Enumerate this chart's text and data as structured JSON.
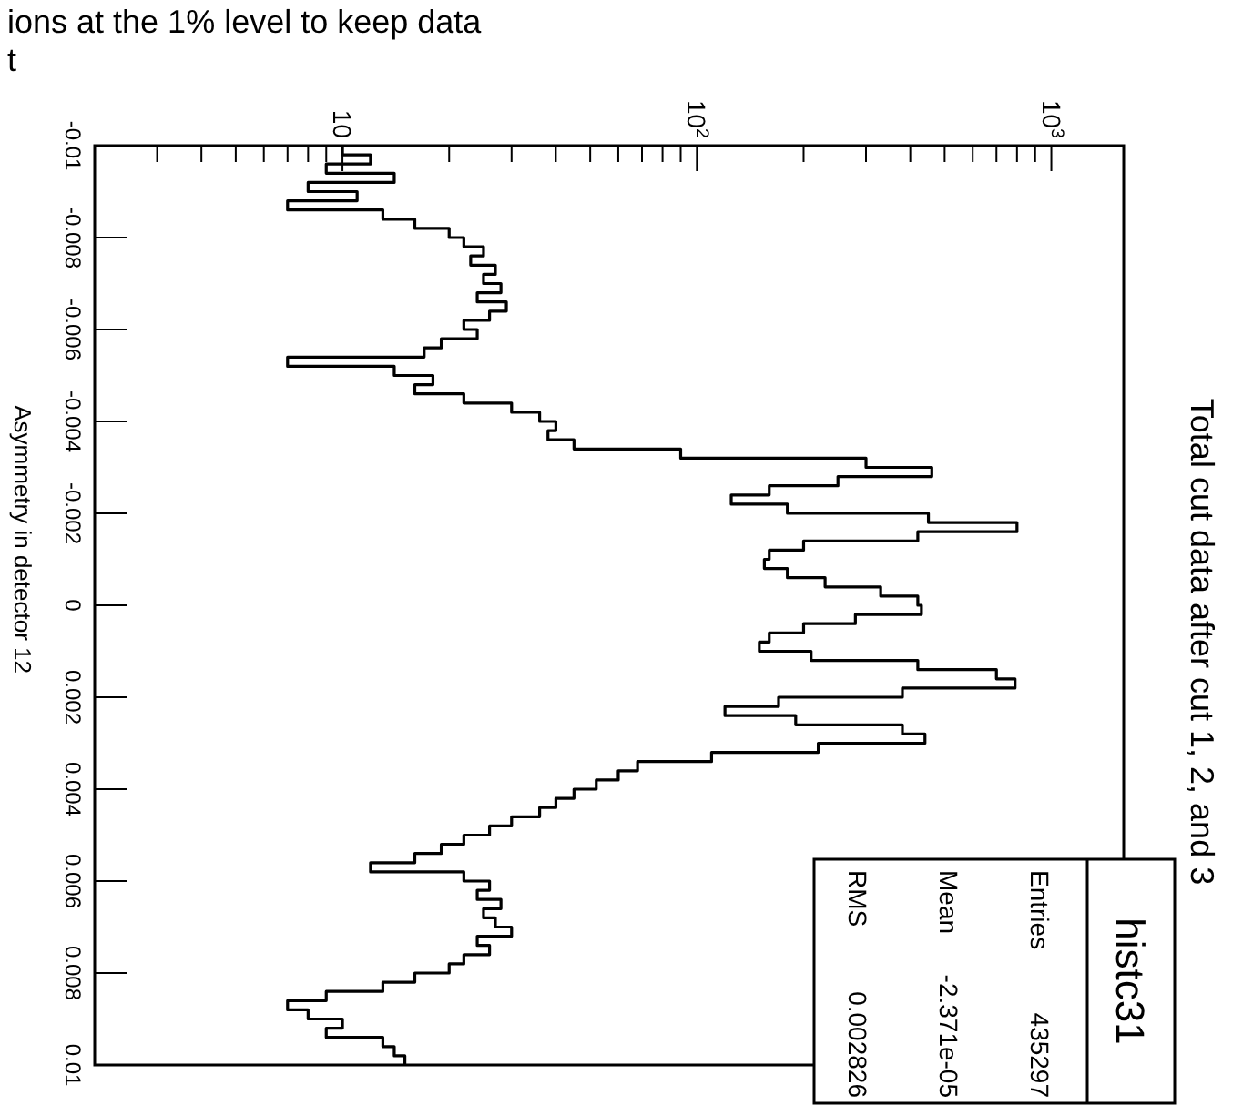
{
  "chart_data": {
    "type": "histogram",
    "title": "Total cut data after cut 1, 2, and 3",
    "ylabel": "Asymmetry in detector 12",
    "orientation": "horizontal",
    "annotations": [
      "ions at the 1% level to keep data",
      "t",
      "histc31",
      "Entries",
      "435297",
      "Mean",
      "-2.371e-05",
      "RMS",
      "0.002826"
    ],
    "bins": [
      -0.01,
      -0.0098,
      -0.0096,
      -0.0094,
      -0.0092,
      -0.009,
      -0.0088,
      -0.0086,
      -0.0084,
      -0.0082,
      -0.008,
      -0.0078,
      -0.0076,
      -0.0074,
      -0.0072,
      -0.007,
      -0.0068,
      -0.0066,
      -0.0064,
      -0.0062,
      -0.006,
      -0.0058,
      -0.0056,
      -0.0054,
      -0.0052,
      -0.005,
      -0.0048,
      -0.0046,
      -0.0044,
      -0.0042,
      -0.004,
      -0.0038,
      -0.0036,
      -0.0034,
      -0.0032,
      -0.003,
      -0.0028,
      -0.0026,
      -0.0024,
      -0.0022,
      -0.002,
      -0.0018,
      -0.0016,
      -0.0014,
      -0.0012,
      -0.001,
      -0.0008,
      -0.0006,
      -0.0004,
      -0.0002,
      0,
      0.0002,
      0.0004,
      0.0006,
      0.0008,
      0.001,
      0.0012,
      0.0014,
      0.0016,
      0.0018,
      0.002,
      0.0022,
      0.0024,
      0.0026,
      0.0028,
      0.003,
      0.0032,
      0.0034,
      0.0036,
      0.0038,
      0.004,
      0.0042,
      0.0044,
      0.0046,
      0.0048,
      0.005,
      0.0052,
      0.0054,
      0.0056,
      0.0058,
      0.006,
      0.0062,
      0.0064,
      0.0066,
      0.0068,
      0.007,
      0.0072,
      0.0074,
      0.0076,
      0.0078,
      0.008,
      0.0082,
      0.0084,
      0.0086,
      0.0088,
      0.009,
      0.0092,
      0.0094,
      0.0096,
      0.0098,
      0.01
    ],
    "values": [
      10,
      12,
      9,
      14,
      8,
      11,
      7,
      13,
      16,
      20,
      22,
      25,
      23,
      27,
      25,
      28,
      24,
      29,
      26,
      22,
      24,
      19,
      17,
      7,
      14,
      18,
      16,
      22,
      30,
      36,
      40,
      38,
      45,
      90,
      300,
      460,
      250,
      160,
      125,
      180,
      450,
      800,
      420,
      200,
      160,
      155,
      180,
      230,
      330,
      420,
      430,
      280,
      200,
      160,
      150,
      210,
      420,
      700,
      790,
      380,
      170,
      120,
      190,
      380,
      440,
      220,
      110,
      68,
      60,
      52,
      45,
      40,
      36,
      30,
      26,
      22,
      19,
      16,
      12,
      22,
      26,
      24,
      28,
      25,
      27,
      30,
      24,
      26,
      22,
      20,
      16,
      13,
      9,
      7,
      8,
      10,
      9,
      13,
      14,
      15
    ],
    "color": "#000000",
    "ylim": [
      0.01,
      -0.01
    ],
    "yticks": [
      {
        "value": -0.01,
        "label": "-0.01"
      },
      {
        "value": -0.008,
        "label": "-0.008"
      },
      {
        "value": -0.006,
        "label": "-0.006"
      },
      {
        "value": -0.004,
        "label": "-0.004"
      },
      {
        "value": -0.002,
        "label": "-0.002"
      },
      {
        "value": 0,
        "label": "0"
      },
      {
        "value": 0.002,
        "label": "0.002"
      },
      {
        "value": 0.004,
        "label": "0.004"
      },
      {
        "value": 0.006,
        "label": "0.006"
      },
      {
        "value": 0.008,
        "label": "0.008"
      },
      {
        "value": 0.01,
        "label": "0.01"
      }
    ],
    "xlim": [
      2,
      1600
    ],
    "log": "x",
    "xticks": [
      {
        "value": 3,
        "label": null
      },
      {
        "value": 4,
        "label": null
      },
      {
        "value": 5,
        "label": null
      },
      {
        "value": 6,
        "label": null
      },
      {
        "value": 7,
        "label": null
      },
      {
        "value": 8,
        "label": null
      },
      {
        "value": 9,
        "label": null
      },
      {
        "value": 10,
        "label": "10"
      },
      {
        "value": 20,
        "label": null
      },
      {
        "value": 30,
        "label": null
      },
      {
        "value": 40,
        "label": null
      },
      {
        "value": 50,
        "label": null
      },
      {
        "value": 60,
        "label": null
      },
      {
        "value": 70,
        "label": null
      },
      {
        "value": 80,
        "label": null
      },
      {
        "value": 90,
        "label": null
      },
      {
        "value": 100,
        "label": "10$^{2}$"
      },
      {
        "value": 200,
        "label": null
      },
      {
        "value": 300,
        "label": null
      },
      {
        "value": 400,
        "label": null
      },
      {
        "value": 500,
        "label": null
      },
      {
        "value": 600,
        "label": null
      },
      {
        "value": 700,
        "label": null
      },
      {
        "value": 800,
        "label": null
      },
      {
        "value": 900,
        "label": null
      },
      {
        "value": 1000,
        "label": "10$^{3}$"
      }
    ]
  }
}
